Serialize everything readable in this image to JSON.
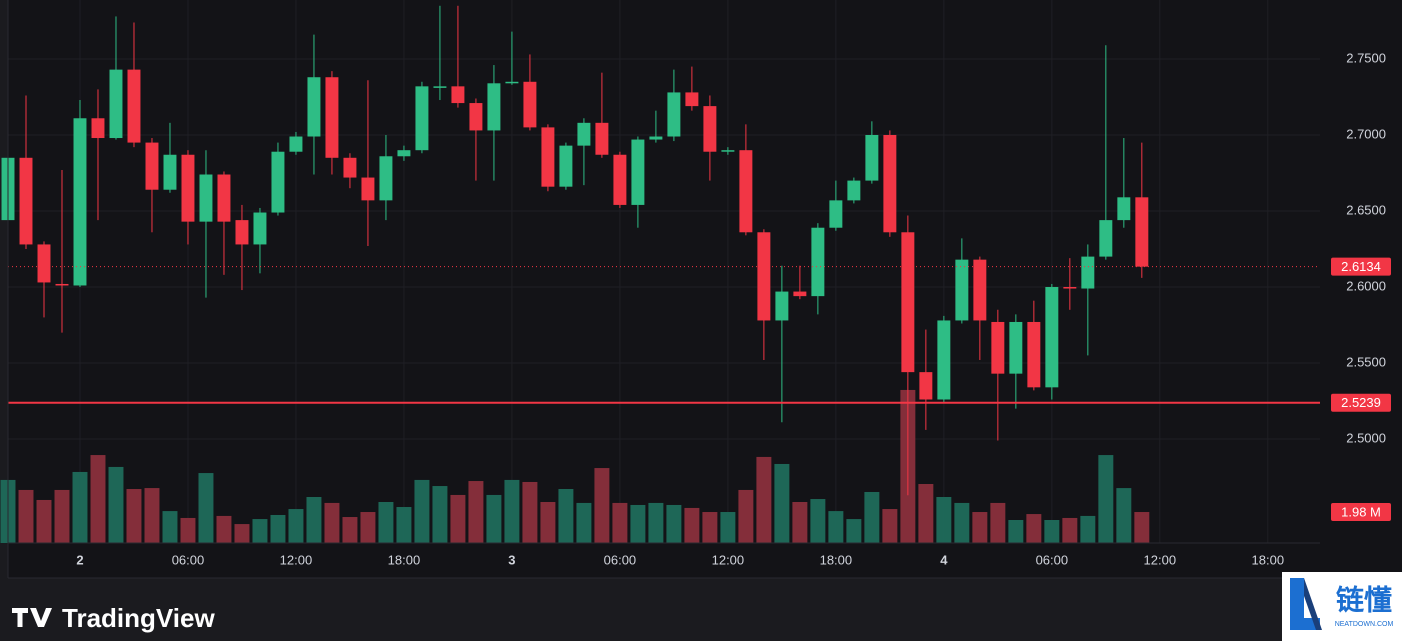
{
  "chart_data": {
    "type": "candlestick",
    "x": [
      -4,
      -3,
      -2,
      -1,
      0,
      1,
      2,
      3,
      4,
      5,
      6,
      7,
      8,
      9,
      10,
      11,
      12,
      13,
      14,
      15,
      16,
      17,
      18,
      19,
      20,
      21,
      22,
      23,
      24,
      25,
      26,
      27,
      28,
      29,
      30,
      31,
      32,
      33,
      34,
      35,
      36,
      37,
      38,
      39,
      40,
      41,
      42,
      43,
      44,
      45,
      46,
      47,
      48,
      49,
      50,
      51,
      52,
      53,
      54,
      55,
      56,
      57,
      58,
      59
    ],
    "open": [
      2.644,
      2.685,
      2.628,
      2.602,
      2.601,
      2.711,
      2.698,
      2.743,
      2.695,
      2.664,
      2.687,
      2.643,
      2.674,
      2.644,
      2.628,
      2.649,
      2.689,
      2.699,
      2.738,
      2.685,
      2.672,
      2.657,
      2.686,
      2.69,
      2.731,
      2.732,
      2.721,
      2.703,
      2.734,
      2.735,
      2.705,
      2.666,
      2.693,
      2.708,
      2.687,
      2.654,
      2.697,
      2.699,
      2.728,
      2.719,
      2.689,
      2.69,
      2.636,
      2.578,
      2.597,
      2.594,
      2.639,
      2.657,
      2.67,
      2.7,
      2.636,
      2.544,
      2.526,
      2.578,
      2.618,
      2.577,
      2.543,
      2.577,
      2.534,
      2.6,
      2.599,
      2.62,
      2.644,
      2.659
    ],
    "high": [
      2.69,
      2.726,
      2.63,
      2.677,
      2.723,
      2.73,
      2.778,
      2.774,
      2.698,
      2.708,
      2.69,
      2.69,
      2.676,
      2.654,
      2.652,
      2.695,
      2.702,
      2.766,
      2.742,
      2.688,
      2.736,
      2.7,
      2.693,
      2.735,
      2.785,
      2.785,
      2.724,
      2.746,
      2.768,
      2.753,
      2.707,
      2.695,
      2.711,
      2.741,
      2.689,
      2.699,
      2.716,
      2.743,
      2.745,
      2.726,
      2.692,
      2.707,
      2.638,
      2.614,
      2.614,
      2.642,
      2.67,
      2.672,
      2.709,
      2.703,
      2.647,
      2.572,
      2.581,
      2.632,
      2.62,
      2.585,
      2.582,
      2.591,
      2.602,
      2.619,
      2.628,
      2.759,
      2.698,
      2.695
    ],
    "low": [
      2.64,
      2.625,
      2.58,
      2.57,
      2.6,
      2.644,
      2.697,
      2.692,
      2.636,
      2.662,
      2.628,
      2.593,
      2.608,
      2.598,
      2.609,
      2.647,
      2.687,
      2.674,
      2.674,
      2.665,
      2.627,
      2.644,
      2.683,
      2.688,
      2.723,
      2.718,
      2.67,
      2.67,
      2.733,
      2.703,
      2.663,
      2.664,
      2.667,
      2.685,
      2.652,
      2.639,
      2.695,
      2.696,
      2.716,
      2.67,
      2.687,
      2.634,
      2.552,
      2.511,
      2.592,
      2.582,
      2.637,
      2.655,
      2.668,
      2.633,
      2.463,
      2.506,
      2.524,
      2.576,
      2.552,
      2.499,
      2.52,
      2.532,
      2.526,
      2.585,
      2.555,
      2.618,
      2.639,
      2.606
    ],
    "close": [
      2.685,
      2.628,
      2.603,
      2.601,
      2.711,
      2.698,
      2.743,
      2.695,
      2.664,
      2.687,
      2.643,
      2.674,
      2.643,
      2.628,
      2.649,
      2.689,
      2.699,
      2.738,
      2.685,
      2.672,
      2.657,
      2.686,
      2.69,
      2.732,
      2.732,
      2.721,
      2.703,
      2.734,
      2.735,
      2.705,
      2.666,
      2.693,
      2.708,
      2.687,
      2.654,
      2.697,
      2.699,
      2.728,
      2.719,
      2.689,
      2.69,
      2.636,
      2.578,
      2.597,
      2.594,
      2.639,
      2.657,
      2.67,
      2.7,
      2.636,
      2.544,
      2.526,
      2.578,
      2.618,
      2.578,
      2.543,
      2.577,
      2.534,
      2.6,
      2.599,
      2.62,
      2.644,
      2.659,
      2.6134
    ],
    "volume": [
      4.03,
      3.39,
      2.75,
      3.39,
      4.54,
      5.62,
      4.86,
      3.45,
      3.51,
      2.04,
      1.6,
      4.47,
      1.73,
      1.21,
      1.53,
      1.79,
      2.17,
      2.94,
      2.56,
      1.66,
      1.98,
      2.62,
      2.3,
      4.03,
      3.64,
      3.07,
      3.96,
      3.07,
      4.03,
      3.9,
      2.62,
      3.45,
      2.56,
      4.79,
      2.56,
      2.43,
      2.56,
      2.43,
      2.24,
      1.98,
      1.98,
      3.39,
      5.5,
      5.05,
      2.62,
      2.81,
      2.04,
      1.53,
      3.26,
      2.17,
      9.78,
      3.77,
      2.94,
      2.56,
      1.98,
      2.56,
      1.47,
      1.85,
      1.47,
      1.6,
      1.73,
      5.62,
      3.51,
      1.98
    ],
    "xlim": [
      -4,
      68.9
    ],
    "ylim": [
      2.4316,
      2.7888
    ],
    "volume_ylim": [
      0,
      34.7
    ],
    "yticks": [
      {
        "value": 2.5,
        "label": "2.5000"
      },
      {
        "value": 2.55,
        "label": "2.5500"
      },
      {
        "value": 2.6,
        "label": "2.6000"
      },
      {
        "value": 2.65,
        "label": "2.6500"
      },
      {
        "value": 2.7,
        "label": "2.7000"
      },
      {
        "value": 2.75,
        "label": "2.7500"
      }
    ],
    "xticks": [
      {
        "value": 0,
        "label": "2"
      },
      {
        "value": 6,
        "label": "06:00"
      },
      {
        "value": 12,
        "label": "12:00"
      },
      {
        "value": 18,
        "label": "18:00"
      },
      {
        "value": 24,
        "label": "3"
      },
      {
        "value": 30,
        "label": "06:00"
      },
      {
        "value": 36,
        "label": "12:00"
      },
      {
        "value": 42,
        "label": "18:00"
      },
      {
        "value": 48,
        "label": "4"
      },
      {
        "value": 54,
        "label": "06:00"
      },
      {
        "value": 60,
        "label": "12:00"
      },
      {
        "value": 66,
        "label": "18:00"
      }
    ],
    "last_price": 2.6134,
    "price_line": 2.5239,
    "last_volume": {
      "value": 1.98,
      "label": "1.98 M"
    },
    "up_color": "#2ebd85",
    "down_color": "#f23645",
    "volume_up_color": "#1f6b5b",
    "volume_down_color": "#8a2f3c",
    "grid": true
  },
  "branding": {
    "logo": "TradingView",
    "watermark": "链懂",
    "watermark_sub": "NEATDOWN.COM"
  }
}
